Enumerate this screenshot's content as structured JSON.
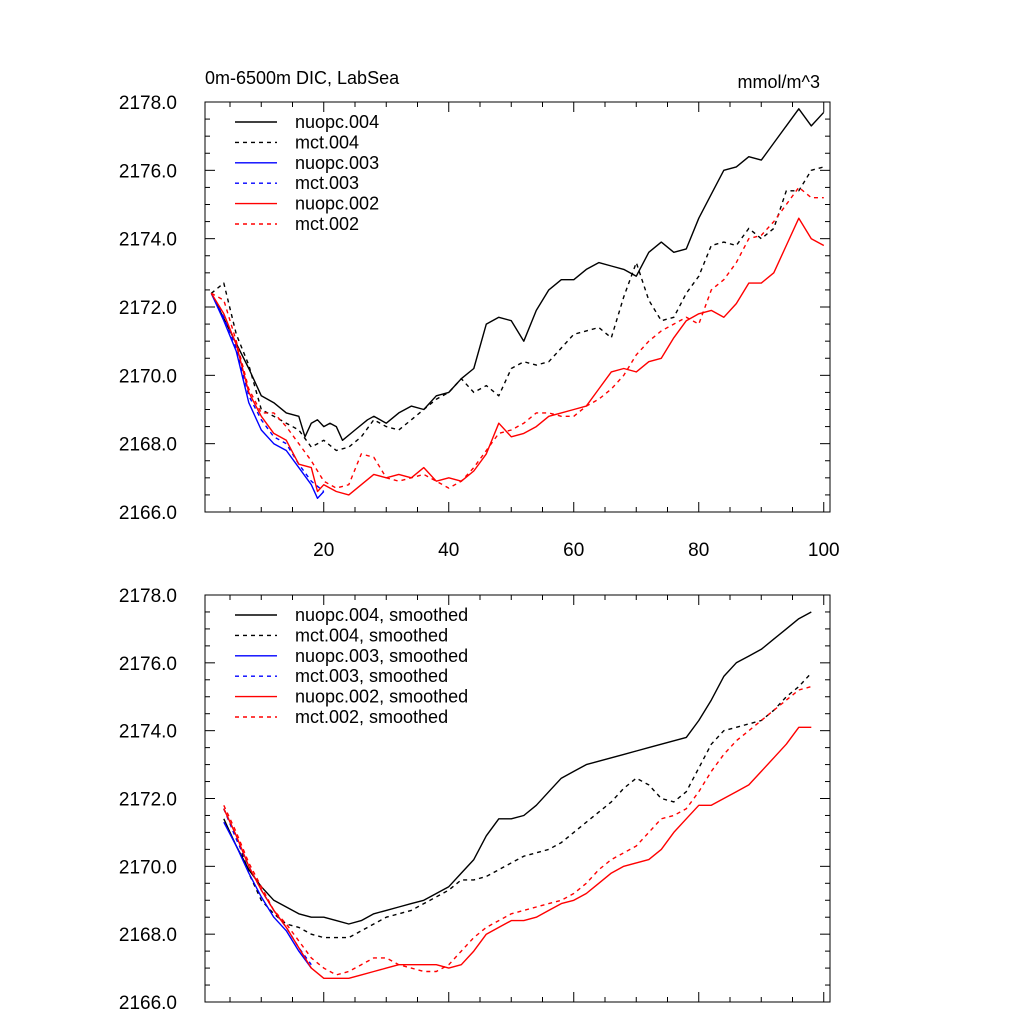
{
  "colors": {
    "black": "#000000",
    "blue": "#0000ff",
    "red": "#ff0000"
  },
  "chart_data": [
    {
      "type": "line",
      "title": "0m-6500m DIC, LabSea",
      "units": "mmol/m^3",
      "xlabel": "",
      "ylabel": "",
      "xlim": [
        1,
        101
      ],
      "ylim": [
        2166,
        2178
      ],
      "xticks": [
        20,
        40,
        60,
        80,
        100
      ],
      "xtick_labels": [
        "20",
        "40",
        "60",
        "80",
        "100"
      ],
      "yticks": [
        2166,
        2168,
        2170,
        2172,
        2174,
        2176,
        2178
      ],
      "ytick_labels": [
        "2166.0",
        "2168.0",
        "2170.0",
        "2172.0",
        "2174.0",
        "2176.0",
        "2178.0"
      ],
      "legend_position": "top-left",
      "series": [
        {
          "name": "nuopc.004",
          "color": "black",
          "dash": false,
          "x": [
            2,
            5,
            8,
            10,
            12,
            14,
            16,
            17,
            18,
            19,
            20,
            21,
            22,
            23,
            25,
            27,
            28,
            30,
            32,
            34,
            36,
            38,
            40,
            42,
            44,
            46,
            48,
            50,
            52,
            54,
            56,
            58,
            60,
            62,
            64,
            66,
            68,
            70,
            72,
            74,
            76,
            78,
            80,
            82,
            84,
            86,
            88,
            90,
            92,
            94,
            96,
            98,
            100
          ],
          "y": [
            2172.4,
            2171.3,
            2170.2,
            2169.4,
            2169.2,
            2168.9,
            2168.8,
            2168.2,
            2168.6,
            2168.7,
            2168.5,
            2168.6,
            2168.5,
            2168.1,
            2168.4,
            2168.7,
            2168.8,
            2168.6,
            2168.9,
            2169.1,
            2169.0,
            2169.4,
            2169.5,
            2169.9,
            2170.2,
            2171.5,
            2171.7,
            2171.6,
            2171.0,
            2171.9,
            2172.5,
            2172.8,
            2172.8,
            2173.1,
            2173.3,
            2173.2,
            2173.1,
            2172.9,
            2173.6,
            2173.9,
            2173.6,
            2173.7,
            2174.6,
            2175.3,
            2176.0,
            2176.1,
            2176.4,
            2176.3,
            2176.8,
            2177.3,
            2177.8,
            2177.3,
            2177.7
          ]
        },
        {
          "name": "mct.004",
          "color": "black",
          "dash": true,
          "x": [
            2,
            4,
            6,
            8,
            10,
            12,
            14,
            16,
            18,
            20,
            22,
            24,
            26,
            28,
            30,
            32,
            34,
            36,
            38,
            40,
            42,
            44,
            46,
            48,
            50,
            52,
            54,
            56,
            58,
            60,
            62,
            64,
            66,
            68,
            70,
            72,
            74,
            76,
            78,
            80,
            82,
            84,
            86,
            88,
            90,
            92,
            94,
            96,
            98,
            100
          ],
          "y": [
            2172.4,
            2172.7,
            2171.2,
            2170.3,
            2169.0,
            2168.8,
            2168.6,
            2168.4,
            2167.9,
            2168.1,
            2167.8,
            2167.9,
            2168.2,
            2168.7,
            2168.5,
            2168.4,
            2168.7,
            2169.0,
            2169.3,
            2169.5,
            2169.9,
            2169.5,
            2169.7,
            2169.4,
            2170.2,
            2170.4,
            2170.3,
            2170.4,
            2170.8,
            2171.2,
            2171.3,
            2171.4,
            2171.1,
            2172.3,
            2173.3,
            2172.2,
            2171.6,
            2171.7,
            2172.4,
            2172.9,
            2173.8,
            2173.9,
            2173.8,
            2174.3,
            2174.0,
            2174.3,
            2175.4,
            2175.4,
            2176.0,
            2176.1
          ]
        },
        {
          "name": "nuopc.003",
          "color": "blue",
          "dash": false,
          "x": [
            2,
            4,
            6,
            8,
            10,
            12,
            14,
            16,
            18,
            19,
            20
          ],
          "y": [
            2172.4,
            2171.6,
            2170.7,
            2169.2,
            2168.4,
            2168.0,
            2167.8,
            2167.3,
            2166.8,
            2166.4,
            2166.6
          ]
        },
        {
          "name": "mct.003",
          "color": "blue",
          "dash": true,
          "x": [
            2,
            4,
            6,
            8,
            10,
            12,
            14,
            16,
            18,
            20
          ],
          "y": [
            2172.4,
            2171.7,
            2170.8,
            2169.4,
            2168.7,
            2168.2,
            2168.0,
            2167.4,
            2166.9,
            2166.6
          ]
        },
        {
          "name": "nuopc.002",
          "color": "red",
          "dash": false,
          "x": [
            2,
            4,
            6,
            8,
            10,
            12,
            14,
            16,
            18,
            19,
            20,
            22,
            24,
            26,
            28,
            30,
            32,
            34,
            36,
            38,
            40,
            42,
            44,
            46,
            48,
            50,
            52,
            54,
            56,
            58,
            60,
            62,
            64,
            66,
            68,
            70,
            72,
            74,
            76,
            78,
            80,
            82,
            84,
            86,
            88,
            90,
            92,
            94,
            96,
            98,
            100
          ],
          "y": [
            2172.4,
            2171.8,
            2170.9,
            2169.5,
            2168.8,
            2168.3,
            2168.1,
            2167.4,
            2167.3,
            2166.6,
            2166.8,
            2166.6,
            2166.5,
            2166.8,
            2167.1,
            2167.0,
            2167.1,
            2167.0,
            2167.3,
            2166.9,
            2167.0,
            2166.9,
            2167.2,
            2167.7,
            2168.6,
            2168.2,
            2168.3,
            2168.5,
            2168.8,
            2168.9,
            2169.0,
            2169.1,
            2169.6,
            2170.1,
            2170.2,
            2170.1,
            2170.4,
            2170.5,
            2171.1,
            2171.6,
            2171.8,
            2171.9,
            2171.7,
            2172.1,
            2172.7,
            2172.7,
            2173.0,
            2173.8,
            2174.6,
            2174.0,
            2173.8
          ]
        },
        {
          "name": "mct.002",
          "color": "red",
          "dash": true,
          "x": [
            2,
            4,
            6,
            8,
            10,
            12,
            14,
            16,
            18,
            20,
            22,
            24,
            26,
            28,
            30,
            32,
            34,
            36,
            38,
            40,
            42,
            44,
            46,
            48,
            50,
            52,
            54,
            56,
            58,
            60,
            62,
            64,
            66,
            68,
            70,
            72,
            74,
            76,
            78,
            80,
            82,
            84,
            86,
            88,
            90,
            92,
            94,
            96,
            98,
            100
          ],
          "y": [
            2172.4,
            2172.2,
            2171.0,
            2169.6,
            2168.9,
            2168.9,
            2168.5,
            2168.0,
            2167.5,
            2166.9,
            2166.7,
            2166.8,
            2167.7,
            2167.6,
            2167.0,
            2166.9,
            2167.0,
            2167.1,
            2166.9,
            2166.7,
            2166.9,
            2167.3,
            2167.8,
            2168.3,
            2168.4,
            2168.6,
            2168.9,
            2168.9,
            2168.8,
            2168.8,
            2169.1,
            2169.3,
            2169.6,
            2170.0,
            2170.6,
            2171.0,
            2171.3,
            2171.5,
            2171.7,
            2171.5,
            2172.5,
            2172.8,
            2173.3,
            2174.0,
            2174.1,
            2174.5,
            2175.0,
            2175.5,
            2175.2,
            2175.2
          ]
        }
      ]
    },
    {
      "type": "line",
      "title": "",
      "xlabel": "",
      "ylabel": "",
      "xlim": [
        1,
        101
      ],
      "ylim": [
        2166,
        2178
      ],
      "xticks": [
        20,
        40,
        60,
        80,
        100
      ],
      "yticks": [
        2166,
        2168,
        2170,
        2172,
        2174,
        2176,
        2178
      ],
      "ytick_labels": [
        "2166.0",
        "2168.0",
        "2170.0",
        "2172.0",
        "2174.0",
        "2176.0",
        "2178.0"
      ],
      "legend_position": "top-left",
      "series": [
        {
          "name": "nuopc.004, smoothed",
          "color": "black",
          "dash": false,
          "x": [
            4,
            6,
            8,
            10,
            12,
            14,
            16,
            18,
            20,
            22,
            24,
            26,
            28,
            30,
            32,
            34,
            36,
            38,
            40,
            42,
            44,
            46,
            48,
            50,
            52,
            54,
            56,
            58,
            60,
            62,
            64,
            66,
            68,
            70,
            72,
            74,
            76,
            78,
            80,
            82,
            84,
            86,
            88,
            90,
            92,
            94,
            96,
            98
          ],
          "y": [
            2171.4,
            2170.6,
            2169.9,
            2169.4,
            2169.0,
            2168.8,
            2168.6,
            2168.5,
            2168.5,
            2168.4,
            2168.3,
            2168.4,
            2168.6,
            2168.7,
            2168.8,
            2168.9,
            2169.0,
            2169.2,
            2169.4,
            2169.8,
            2170.2,
            2170.9,
            2171.4,
            2171.4,
            2171.5,
            2171.8,
            2172.2,
            2172.6,
            2172.8,
            2173.0,
            2173.1,
            2173.2,
            2173.3,
            2173.4,
            2173.5,
            2173.6,
            2173.7,
            2173.8,
            2174.3,
            2174.9,
            2175.6,
            2176.0,
            2176.2,
            2176.4,
            2176.7,
            2177.0,
            2177.3,
            2177.5
          ]
        },
        {
          "name": "mct.004, smoothed",
          "color": "black",
          "dash": true,
          "x": [
            4,
            6,
            8,
            10,
            12,
            14,
            16,
            18,
            20,
            22,
            24,
            26,
            28,
            30,
            32,
            34,
            36,
            38,
            40,
            42,
            44,
            46,
            48,
            50,
            52,
            54,
            56,
            58,
            60,
            62,
            64,
            66,
            68,
            70,
            72,
            74,
            76,
            78,
            80,
            82,
            84,
            86,
            88,
            90,
            92,
            94,
            96,
            98
          ],
          "y": [
            2171.7,
            2170.9,
            2169.8,
            2169.0,
            2168.6,
            2168.3,
            2168.2,
            2168.0,
            2167.9,
            2167.9,
            2167.9,
            2168.1,
            2168.3,
            2168.5,
            2168.6,
            2168.7,
            2168.9,
            2169.1,
            2169.3,
            2169.6,
            2169.6,
            2169.7,
            2169.9,
            2170.1,
            2170.3,
            2170.4,
            2170.5,
            2170.7,
            2171.0,
            2171.3,
            2171.6,
            2171.9,
            2172.3,
            2172.6,
            2172.4,
            2172.0,
            2171.9,
            2172.2,
            2172.9,
            2173.6,
            2174.0,
            2174.1,
            2174.2,
            2174.3,
            2174.6,
            2175.0,
            2175.3,
            2175.7
          ]
        },
        {
          "name": "nuopc.003, smoothed",
          "color": "blue",
          "dash": false,
          "x": [
            4,
            6,
            8,
            10,
            12,
            14,
            16,
            18
          ],
          "y": [
            2171.3,
            2170.6,
            2169.8,
            2169.1,
            2168.5,
            2168.1,
            2167.5,
            2167.0
          ]
        },
        {
          "name": "mct.003, smoothed",
          "color": "blue",
          "dash": true,
          "x": [
            4,
            6,
            8,
            10,
            12,
            14,
            16,
            18
          ],
          "y": [
            2171.7,
            2170.8,
            2170.0,
            2169.3,
            2168.7,
            2168.2,
            2167.6,
            2167.1
          ]
        },
        {
          "name": "nuopc.002, smoothed",
          "color": "red",
          "dash": false,
          "x": [
            4,
            6,
            8,
            10,
            12,
            14,
            16,
            18,
            20,
            22,
            24,
            26,
            28,
            30,
            32,
            34,
            36,
            38,
            40,
            42,
            44,
            46,
            48,
            50,
            52,
            54,
            56,
            58,
            60,
            62,
            64,
            66,
            68,
            70,
            72,
            74,
            76,
            78,
            80,
            82,
            84,
            86,
            88,
            90,
            92,
            94,
            96,
            98
          ],
          "y": [
            2171.7,
            2170.9,
            2170.0,
            2169.3,
            2168.7,
            2168.2,
            2167.6,
            2167.0,
            2166.7,
            2166.7,
            2166.7,
            2166.8,
            2166.9,
            2167.0,
            2167.1,
            2167.1,
            2167.1,
            2167.1,
            2167.0,
            2167.1,
            2167.5,
            2168.0,
            2168.2,
            2168.4,
            2168.4,
            2168.5,
            2168.7,
            2168.9,
            2169.0,
            2169.2,
            2169.5,
            2169.8,
            2170.0,
            2170.1,
            2170.2,
            2170.5,
            2171.0,
            2171.4,
            2171.8,
            2171.8,
            2172.0,
            2172.2,
            2172.4,
            2172.8,
            2173.2,
            2173.6,
            2174.1,
            2174.1
          ]
        },
        {
          "name": "mct.002, smoothed",
          "color": "red",
          "dash": true,
          "x": [
            4,
            6,
            8,
            10,
            12,
            14,
            16,
            18,
            20,
            22,
            24,
            26,
            28,
            30,
            32,
            34,
            36,
            38,
            40,
            42,
            44,
            46,
            48,
            50,
            52,
            54,
            56,
            58,
            60,
            62,
            64,
            66,
            68,
            70,
            72,
            74,
            76,
            78,
            80,
            82,
            84,
            86,
            88,
            90,
            92,
            94,
            96,
            98
          ],
          "y": [
            2171.8,
            2171.0,
            2170.1,
            2169.4,
            2168.7,
            2168.3,
            2167.8,
            2167.3,
            2167.0,
            2166.8,
            2166.9,
            2167.1,
            2167.3,
            2167.3,
            2167.1,
            2167.0,
            2166.9,
            2166.9,
            2167.1,
            2167.5,
            2167.9,
            2168.2,
            2168.4,
            2168.6,
            2168.7,
            2168.8,
            2168.9,
            2169.0,
            2169.2,
            2169.5,
            2169.9,
            2170.2,
            2170.4,
            2170.6,
            2171.0,
            2171.4,
            2171.5,
            2171.7,
            2172.2,
            2172.8,
            2173.3,
            2173.7,
            2174.0,
            2174.3,
            2174.6,
            2174.9,
            2175.2,
            2175.3
          ]
        }
      ]
    }
  ]
}
